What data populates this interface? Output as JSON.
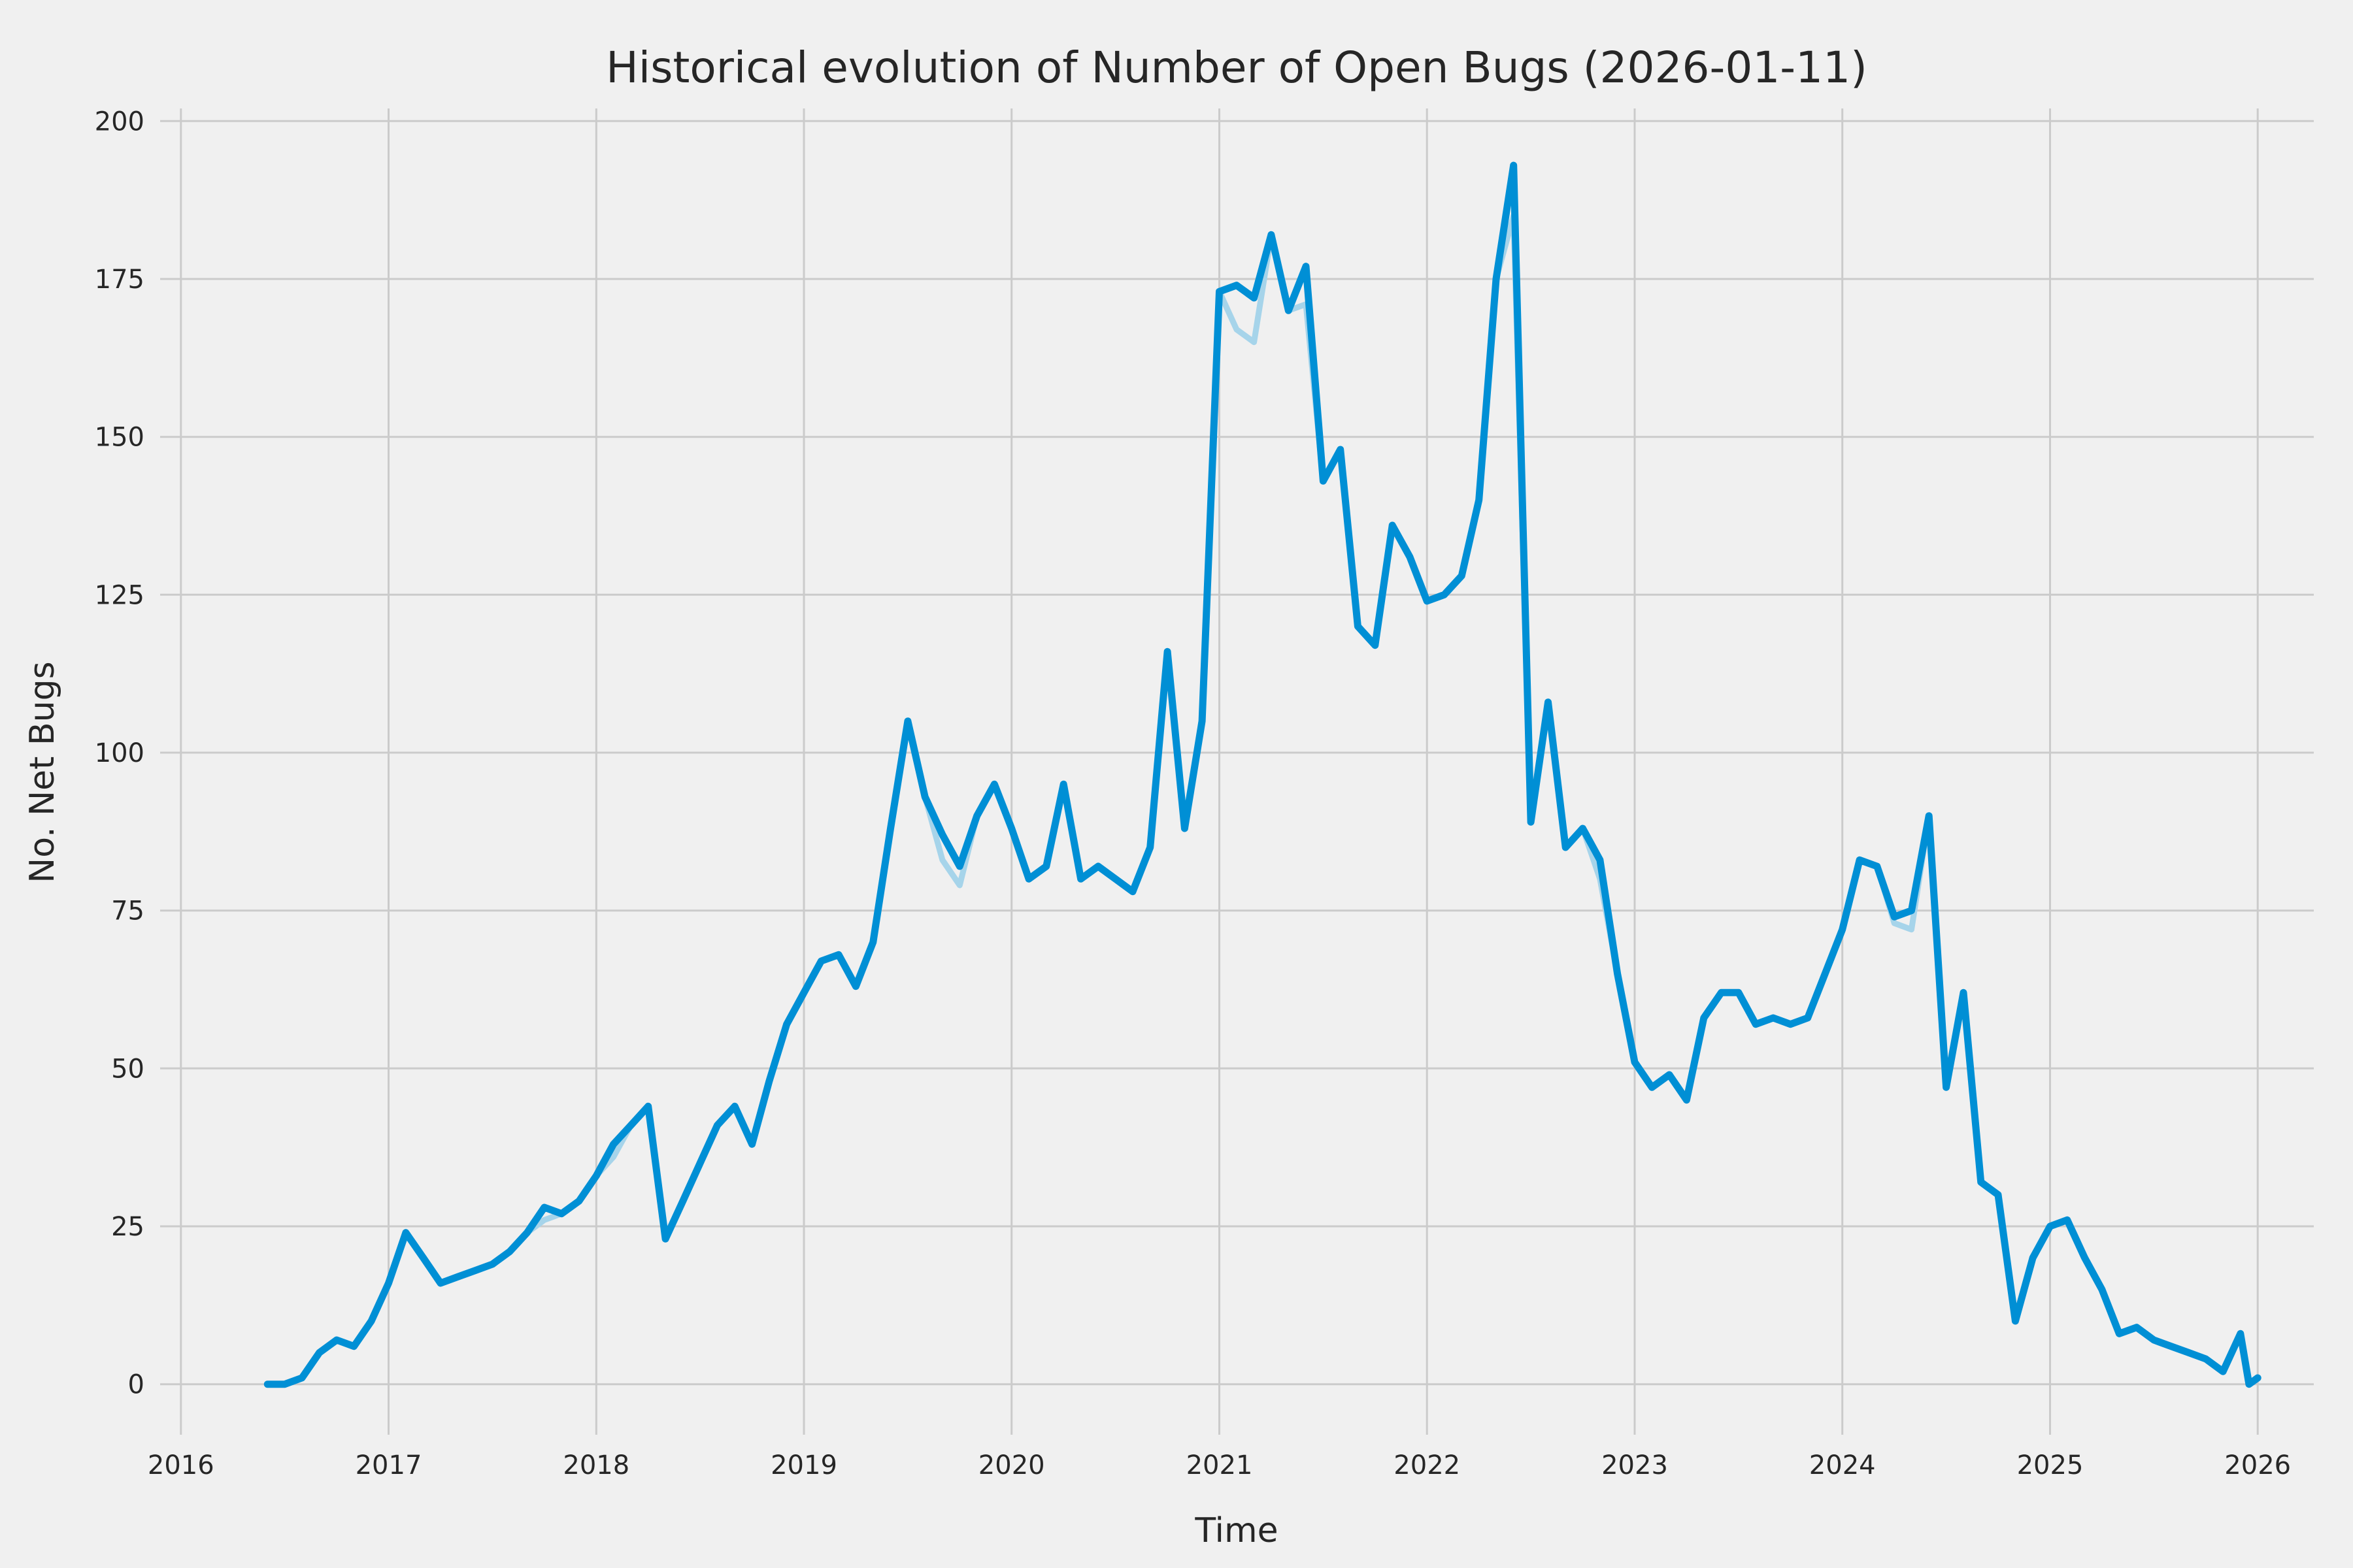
{
  "figure": {
    "title": "Historical evolution of Number of Open Bugs (2026-01-11)",
    "x_axis_label": "Time",
    "y_axis_label": "No. Net Bugs"
  },
  "style": {
    "background_color": "#f0f0f0",
    "grid_color": "#cbcbcb",
    "primary_line_color": "#008fd5",
    "secondary_line_color": "#a6d4ea",
    "text_color": "#262626"
  },
  "chart_data": {
    "type": "line",
    "title": "Historical evolution of Number of Open Bugs (2026-01-11)",
    "xlabel": "Time",
    "ylabel": "No. Net Bugs",
    "xlim": [
      2015.9,
      2026.27
    ],
    "ylim": [
      -8,
      202
    ],
    "xticks": [
      2016,
      2017,
      2018,
      2019,
      2020,
      2021,
      2022,
      2023,
      2024,
      2025,
      2026
    ],
    "yticks": [
      0,
      25,
      50,
      75,
      100,
      125,
      150,
      175,
      200
    ],
    "grid": true,
    "legend": "none",
    "series": [
      {
        "name": "open-bugs-underlay",
        "color": "#a6d4ea",
        "x": [
          2016.417,
          2016.5,
          2016.583,
          2016.667,
          2016.75,
          2016.833,
          2016.917,
          2017.0,
          2017.083,
          2017.167,
          2017.25,
          2017.333,
          2017.417,
          2017.5,
          2017.583,
          2017.667,
          2017.75,
          2017.833,
          2017.917,
          2018.0,
          2018.083,
          2018.167,
          2018.25,
          2018.333,
          2018.417,
          2018.5,
          2018.583,
          2018.667,
          2018.75,
          2018.833,
          2018.917,
          2019.0,
          2019.083,
          2019.167,
          2019.25,
          2019.333,
          2019.417,
          2019.5,
          2019.583,
          2019.667,
          2019.75,
          2019.833,
          2019.917,
          2020.0,
          2020.083,
          2020.167,
          2020.25,
          2020.333,
          2020.417,
          2020.5,
          2020.583,
          2020.667,
          2020.75,
          2020.833,
          2020.917,
          2021.0,
          2021.083,
          2021.167,
          2021.25,
          2021.333,
          2021.417,
          2021.5,
          2021.583,
          2021.667,
          2021.75,
          2021.833,
          2021.917,
          2022.0,
          2022.083,
          2022.167,
          2022.25,
          2022.333,
          2022.417,
          2022.5,
          2022.583,
          2022.667,
          2022.75,
          2022.833,
          2022.917,
          2023.0,
          2023.083,
          2023.167,
          2023.25,
          2023.333,
          2023.417,
          2023.5,
          2023.583,
          2023.667,
          2023.75,
          2023.833,
          2023.917,
          2024.0,
          2024.083,
          2024.167,
          2024.25,
          2024.333,
          2024.417,
          2024.5,
          2024.583,
          2024.667,
          2024.75,
          2024.833,
          2024.917,
          2025.0,
          2025.083,
          2025.167,
          2025.25,
          2025.333,
          2025.417,
          2025.5,
          2025.583,
          2025.667,
          2025.75,
          2025.833,
          2025.917,
          2025.958,
          2026.0
        ],
        "y": [
          0,
          0,
          1,
          5,
          7,
          6,
          10,
          16,
          24,
          20,
          16,
          17,
          18,
          19,
          21,
          24,
          26,
          27,
          29,
          33,
          36,
          41,
          44,
          23,
          29,
          35,
          41,
          44,
          38,
          48,
          57,
          62,
          67,
          68,
          63,
          70,
          88,
          105,
          93,
          83,
          79,
          90,
          95,
          88,
          80,
          82,
          95,
          80,
          82,
          80,
          78,
          85,
          116,
          88,
          105,
          173,
          167,
          165,
          182,
          170,
          171,
          143,
          148,
          120,
          117,
          136,
          131,
          124,
          125,
          128,
          140,
          175,
          185,
          89,
          108,
          85,
          88,
          80,
          65,
          51,
          47,
          49,
          45,
          58,
          62,
          62,
          57,
          58,
          57,
          58,
          65,
          72,
          83,
          82,
          73,
          72,
          90,
          47,
          62,
          32,
          30,
          10,
          20,
          25,
          26,
          20,
          15,
          8,
          9,
          7,
          6,
          5,
          4,
          2,
          8,
          0,
          1
        ]
      },
      {
        "name": "open-bugs",
        "color": "#008fd5",
        "x": [
          2016.417,
          2016.5,
          2016.583,
          2016.667,
          2016.75,
          2016.833,
          2016.917,
          2017.0,
          2017.083,
          2017.167,
          2017.25,
          2017.333,
          2017.417,
          2017.5,
          2017.583,
          2017.667,
          2017.75,
          2017.833,
          2017.917,
          2018.0,
          2018.083,
          2018.167,
          2018.25,
          2018.333,
          2018.417,
          2018.5,
          2018.583,
          2018.667,
          2018.75,
          2018.833,
          2018.917,
          2019.0,
          2019.083,
          2019.167,
          2019.25,
          2019.333,
          2019.417,
          2019.5,
          2019.583,
          2019.667,
          2019.75,
          2019.833,
          2019.917,
          2020.0,
          2020.083,
          2020.167,
          2020.25,
          2020.333,
          2020.417,
          2020.5,
          2020.583,
          2020.667,
          2020.75,
          2020.833,
          2020.917,
          2021.0,
          2021.083,
          2021.167,
          2021.25,
          2021.333,
          2021.417,
          2021.5,
          2021.583,
          2021.667,
          2021.75,
          2021.833,
          2021.917,
          2022.0,
          2022.083,
          2022.167,
          2022.25,
          2022.333,
          2022.417,
          2022.5,
          2022.583,
          2022.667,
          2022.75,
          2022.833,
          2022.917,
          2023.0,
          2023.083,
          2023.167,
          2023.25,
          2023.333,
          2023.417,
          2023.5,
          2023.583,
          2023.667,
          2023.75,
          2023.833,
          2023.917,
          2024.0,
          2024.083,
          2024.167,
          2024.25,
          2024.333,
          2024.417,
          2024.5,
          2024.583,
          2024.667,
          2024.75,
          2024.833,
          2024.917,
          2025.0,
          2025.083,
          2025.167,
          2025.25,
          2025.333,
          2025.417,
          2025.5,
          2025.583,
          2025.667,
          2025.75,
          2025.833,
          2025.917,
          2025.958,
          2026.0
        ],
        "y": [
          0,
          0,
          1,
          5,
          7,
          6,
          10,
          16,
          24,
          20,
          16,
          17,
          18,
          19,
          21,
          24,
          28,
          27,
          29,
          33,
          38,
          41,
          44,
          23,
          29,
          35,
          41,
          44,
          38,
          48,
          57,
          62,
          67,
          68,
          63,
          70,
          88,
          105,
          93,
          87,
          82,
          90,
          95,
          88,
          80,
          82,
          95,
          80,
          82,
          80,
          78,
          85,
          116,
          88,
          105,
          173,
          174,
          172,
          182,
          170,
          177,
          143,
          148,
          120,
          117,
          136,
          131,
          124,
          125,
          128,
          140,
          175,
          193,
          89,
          108,
          85,
          88,
          83,
          65,
          51,
          47,
          49,
          45,
          58,
          62,
          62,
          57,
          58,
          57,
          58,
          65,
          72,
          83,
          82,
          74,
          75,
          90,
          47,
          62,
          32,
          30,
          10,
          20,
          25,
          26,
          20,
          15,
          8,
          9,
          7,
          6,
          5,
          4,
          2,
          8,
          0,
          1
        ]
      }
    ]
  }
}
